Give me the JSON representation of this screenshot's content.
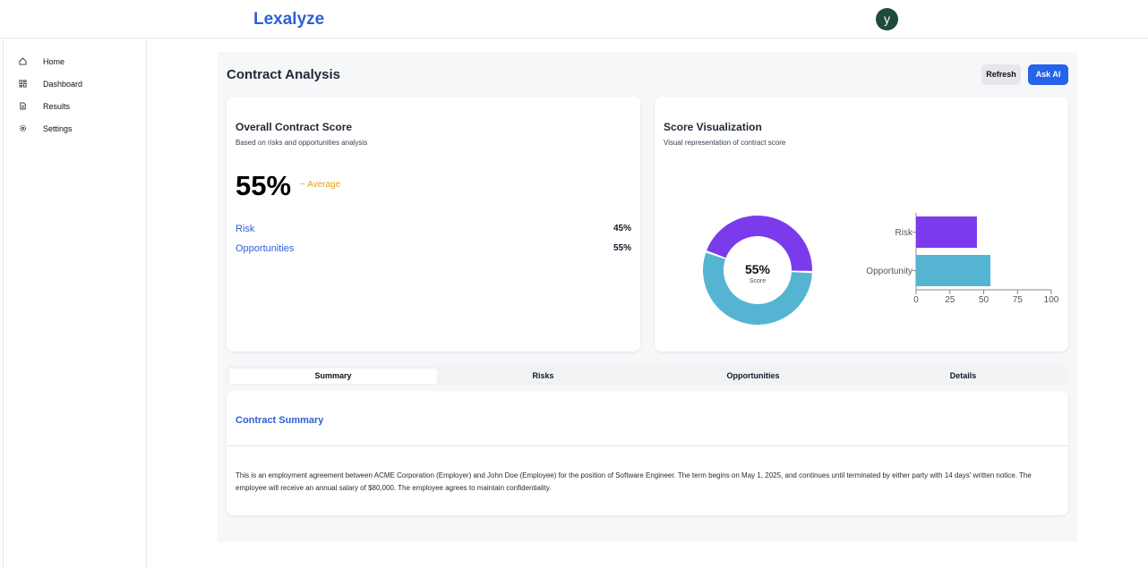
{
  "header": {
    "brand": "Lexalyze",
    "avatar": "y"
  },
  "sidebar": {
    "items": [
      "Home",
      "Dashboard",
      "Results",
      "Settings"
    ]
  },
  "page": {
    "title": "Contract Analysis",
    "buttons": [
      "Refresh",
      "Ask AI"
    ]
  },
  "score_card": {
    "title": "Overall Contract Score",
    "subtitle": "Based on risks and opportunities analysis",
    "score": "55%",
    "rating": "Average",
    "rows": [
      {
        "label": "Risk",
        "value": "45%"
      },
      {
        "label": "Opportunities",
        "value": "55%"
      }
    ]
  },
  "viz_card": {
    "title": "Score Visualization",
    "subtitle": "Visual representation of contract score"
  },
  "chart_data": [
    {
      "type": "pie",
      "donut": true,
      "values": [
        55,
        45
      ],
      "colors": [
        "#56b4d3",
        "#7c3aed"
      ],
      "center_label": "55%",
      "center_caption": "Score"
    },
    {
      "type": "bar",
      "orientation": "horizontal",
      "categories": [
        "Risk",
        "Opportunity"
      ],
      "values": [
        45,
        55
      ],
      "colors": [
        "#7c3aed",
        "#56b4d3"
      ],
      "xlim": [
        0,
        100
      ],
      "xticks": [
        0,
        25,
        50,
        75,
        100
      ]
    }
  ],
  "tabs": {
    "items": [
      "Summary",
      "Risks",
      "Opportunities",
      "Details"
    ],
    "active": 0
  },
  "summary": {
    "title": "Contract Summary",
    "text": "This is an employment agreement between ACME Corporation (Employer) and John Doe (Employee) for the position of Software Engineer. The term begins on May 1, 2025, and continues until terminated by either party with 14 days' written notice. The employee will receive an annual salary of $80,000. The employee agrees to maintain confidentiality."
  }
}
